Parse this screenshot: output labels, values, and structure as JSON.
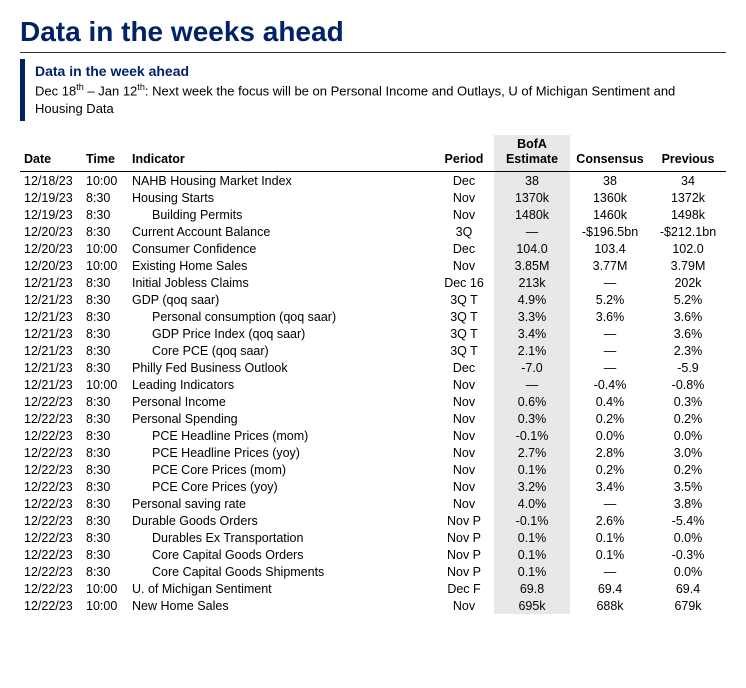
{
  "title": "Data in the weeks ahead",
  "subtitle": {
    "line1": "Data in the week ahead",
    "line2_html": "Dec 18<sup>th</sup> – Jan 12<sup>th</sup>: Next week the focus will be on Personal Income and Outlays, U of Michigan Sentiment and Housing Data"
  },
  "columns": {
    "date": "Date",
    "time": "Time",
    "indicator": "Indicator",
    "period": "Period",
    "estimate_l1": "BofA",
    "estimate_l2": "Estimate",
    "consensus": "Consensus",
    "previous": "Previous"
  },
  "rows": [
    {
      "date": "12/18/23",
      "time": "10:00",
      "indicator": "NAHB Housing Market Index",
      "indent": 0,
      "period": "Dec",
      "estimate": "38",
      "consensus": "38",
      "previous": "34"
    },
    {
      "date": "12/19/23",
      "time": "8:30",
      "indicator": "Housing Starts",
      "indent": 0,
      "period": "Nov",
      "estimate": "1370k",
      "consensus": "1360k",
      "previous": "1372k"
    },
    {
      "date": "12/19/23",
      "time": "8:30",
      "indicator": "Building Permits",
      "indent": 1,
      "period": "Nov",
      "estimate": "1480k",
      "consensus": "1460k",
      "previous": "1498k"
    },
    {
      "date": "12/20/23",
      "time": "8:30",
      "indicator": "Current Account Balance",
      "indent": 0,
      "period": "3Q",
      "estimate": "—",
      "consensus": "-$196.5bn",
      "previous": "-$212.1bn"
    },
    {
      "date": "12/20/23",
      "time": "10:00",
      "indicator": "Consumer Confidence",
      "indent": 0,
      "period": "Dec",
      "estimate": "104.0",
      "consensus": "103.4",
      "previous": "102.0"
    },
    {
      "date": "12/20/23",
      "time": "10:00",
      "indicator": "Existing Home Sales",
      "indent": 0,
      "period": "Nov",
      "estimate": "3.85M",
      "consensus": "3.77M",
      "previous": "3.79M"
    },
    {
      "date": "12/21/23",
      "time": "8:30",
      "indicator": "Initial Jobless Claims",
      "indent": 0,
      "period": "Dec 16",
      "estimate": "213k",
      "consensus": "—",
      "previous": "202k"
    },
    {
      "date": "12/21/23",
      "time": "8:30",
      "indicator": "GDP (qoq saar)",
      "indent": 0,
      "period": "3Q T",
      "estimate": "4.9%",
      "consensus": "5.2%",
      "previous": "5.2%"
    },
    {
      "date": "12/21/23",
      "time": "8:30",
      "indicator": "Personal consumption (qoq saar)",
      "indent": 1,
      "period": "3Q T",
      "estimate": "3.3%",
      "consensus": "3.6%",
      "previous": "3.6%"
    },
    {
      "date": "12/21/23",
      "time": "8:30",
      "indicator": "GDP Price Index (qoq saar)",
      "indent": 1,
      "period": "3Q T",
      "estimate": "3.4%",
      "consensus": "—",
      "previous": "3.6%"
    },
    {
      "date": "12/21/23",
      "time": "8:30",
      "indicator": "Core PCE (qoq saar)",
      "indent": 1,
      "period": "3Q T",
      "estimate": "2.1%",
      "consensus": "—",
      "previous": "2.3%"
    },
    {
      "date": "12/21/23",
      "time": "8:30",
      "indicator": "Philly Fed Business Outlook",
      "indent": 0,
      "period": "Dec",
      "estimate": "-7.0",
      "consensus": "—",
      "previous": "-5.9"
    },
    {
      "date": "12/21/23",
      "time": "10:00",
      "indicator": "Leading Indicators",
      "indent": 0,
      "period": "Nov",
      "estimate": "—",
      "consensus": "-0.4%",
      "previous": "-0.8%"
    },
    {
      "date": "12/22/23",
      "time": "8:30",
      "indicator": "Personal Income",
      "indent": 0,
      "period": "Nov",
      "estimate": "0.6%",
      "consensus": "0.4%",
      "previous": "0.3%"
    },
    {
      "date": "12/22/23",
      "time": "8:30",
      "indicator": "Personal Spending",
      "indent": 0,
      "period": "Nov",
      "estimate": "0.3%",
      "consensus": "0.2%",
      "previous": "0.2%"
    },
    {
      "date": "12/22/23",
      "time": "8:30",
      "indicator": "PCE Headline Prices (mom)",
      "indent": 1,
      "period": "Nov",
      "estimate": "-0.1%",
      "consensus": "0.0%",
      "previous": "0.0%"
    },
    {
      "date": "12/22/23",
      "time": "8:30",
      "indicator": "PCE Headline Prices (yoy)",
      "indent": 1,
      "period": "Nov",
      "estimate": "2.7%",
      "consensus": "2.8%",
      "previous": "3.0%"
    },
    {
      "date": "12/22/23",
      "time": "8:30",
      "indicator": "PCE Core Prices (mom)",
      "indent": 1,
      "period": "Nov",
      "estimate": "0.1%",
      "consensus": "0.2%",
      "previous": "0.2%"
    },
    {
      "date": "12/22/23",
      "time": "8:30",
      "indicator": "PCE Core Prices (yoy)",
      "indent": 1,
      "period": "Nov",
      "estimate": "3.2%",
      "consensus": "3.4%",
      "previous": "3.5%"
    },
    {
      "date": "12/22/23",
      "time": "8:30",
      "indicator": "Personal saving rate",
      "indent": 0,
      "period": "Nov",
      "estimate": "4.0%",
      "consensus": "—",
      "previous": "3.8%"
    },
    {
      "date": "12/22/23",
      "time": "8:30",
      "indicator": "Durable Goods Orders",
      "indent": 0,
      "period": "Nov P",
      "estimate": "-0.1%",
      "consensus": "2.6%",
      "previous": "-5.4%"
    },
    {
      "date": "12/22/23",
      "time": "8:30",
      "indicator": "Durables Ex Transportation",
      "indent": 1,
      "period": "Nov P",
      "estimate": "0.1%",
      "consensus": "0.1%",
      "previous": "0.0%"
    },
    {
      "date": "12/22/23",
      "time": "8:30",
      "indicator": "Core Capital Goods Orders",
      "indent": 1,
      "period": "Nov P",
      "estimate": "0.1%",
      "consensus": "0.1%",
      "previous": "-0.3%"
    },
    {
      "date": "12/22/23",
      "time": "8:30",
      "indicator": "Core Capital Goods Shipments",
      "indent": 1,
      "period": "Nov P",
      "estimate": "0.1%",
      "consensus": "—",
      "previous": "0.0%"
    },
    {
      "date": "12/22/23",
      "time": "10:00",
      "indicator": "U. of Michigan Sentiment",
      "indent": 0,
      "period": "Dec F",
      "estimate": "69.8",
      "consensus": "69.4",
      "previous": "69.4"
    },
    {
      "date": "12/22/23",
      "time": "10:00",
      "indicator": "New Home Sales",
      "indent": 0,
      "period": "Nov",
      "estimate": "695k",
      "consensus": "688k",
      "previous": "679k"
    }
  ]
}
